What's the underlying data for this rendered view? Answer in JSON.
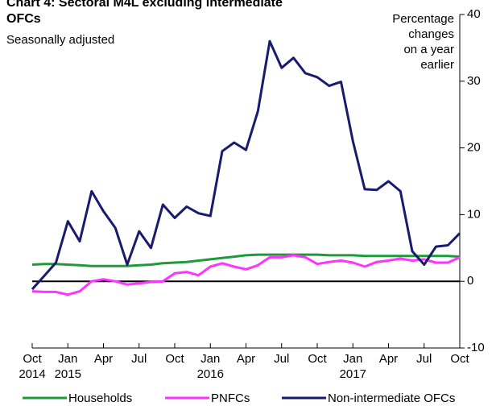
{
  "chart_data": {
    "type": "line",
    "title": [
      "Chart 4: Sectoral M4L excluding intermediate",
      "OFCs"
    ],
    "subtitle": "Seasonally adjusted",
    "y_label": [
      "Percentage",
      "changes",
      "on a year",
      "earlier"
    ],
    "categories": [
      "Oct",
      null,
      null,
      "Jan",
      null,
      null,
      "Apr",
      null,
      null,
      "Jul",
      null,
      null,
      "Oct",
      null,
      null,
      "Jan",
      null,
      null,
      "Apr",
      null,
      null,
      "Jul",
      null,
      null,
      "Oct",
      null,
      null,
      "Jan",
      null,
      null,
      "Apr",
      null,
      null,
      "Jul",
      null,
      null,
      "Oct"
    ],
    "category_years": [
      "2014",
      null,
      null,
      "2015",
      null,
      null,
      null,
      null,
      null,
      null,
      null,
      null,
      null,
      null,
      null,
      "2016",
      null,
      null,
      null,
      null,
      null,
      null,
      null,
      null,
      null,
      null,
      null,
      "2017",
      null,
      null,
      null,
      null,
      null,
      null,
      null,
      null,
      null
    ],
    "ylim": [
      -10,
      40
    ],
    "yticks": [
      -10,
      0,
      10,
      20,
      30,
      40
    ],
    "series": [
      {
        "name": "Households",
        "color": "#1f9a3a",
        "values": [
          2.5,
          2.6,
          2.6,
          2.5,
          2.4,
          2.3,
          2.3,
          2.3,
          2.3,
          2.4,
          2.5,
          2.7,
          2.8,
          2.9,
          3.1,
          3.3,
          3.5,
          3.7,
          3.9,
          4.0,
          4.0,
          4.0,
          4.0,
          4.0,
          4.0,
          3.9,
          3.9,
          3.9,
          3.8,
          3.8,
          3.8,
          3.8,
          3.8,
          3.8,
          3.8,
          3.8,
          3.7
        ]
      },
      {
        "name": "PNFCs",
        "color": "#ff33ff",
        "values": [
          -1.5,
          -1.6,
          -1.6,
          -2,
          -1.5,
          0,
          0.3,
          0,
          -0.5,
          -0.3,
          -0.1,
          0,
          1.2,
          1.4,
          0.9,
          2.2,
          2.7,
          2.2,
          1.8,
          2.4,
          3.6,
          3.6,
          3.9,
          3.6,
          2.6,
          2.9,
          3.1,
          2.8,
          2.2,
          2.9,
          3.1,
          3.4,
          3.1,
          3.3,
          2.8,
          2.8,
          3.6
        ]
      },
      {
        "name": "Non-intermediate OFCs",
        "color": "#1a1a6e",
        "values": [
          -1.2,
          0.8,
          2.8,
          9,
          6,
          13.5,
          10.5,
          8,
          2.5,
          7.5,
          5,
          11.5,
          9.5,
          11.2,
          10.2,
          9.8,
          19.5,
          20.8,
          19.7,
          25.5,
          36,
          32,
          33.5,
          31.2,
          30.6,
          29.3,
          29.9,
          21,
          13.8,
          13.7,
          15,
          13.5,
          4.5,
          2.5,
          5.2,
          5.4,
          7.2
        ]
      }
    ]
  }
}
